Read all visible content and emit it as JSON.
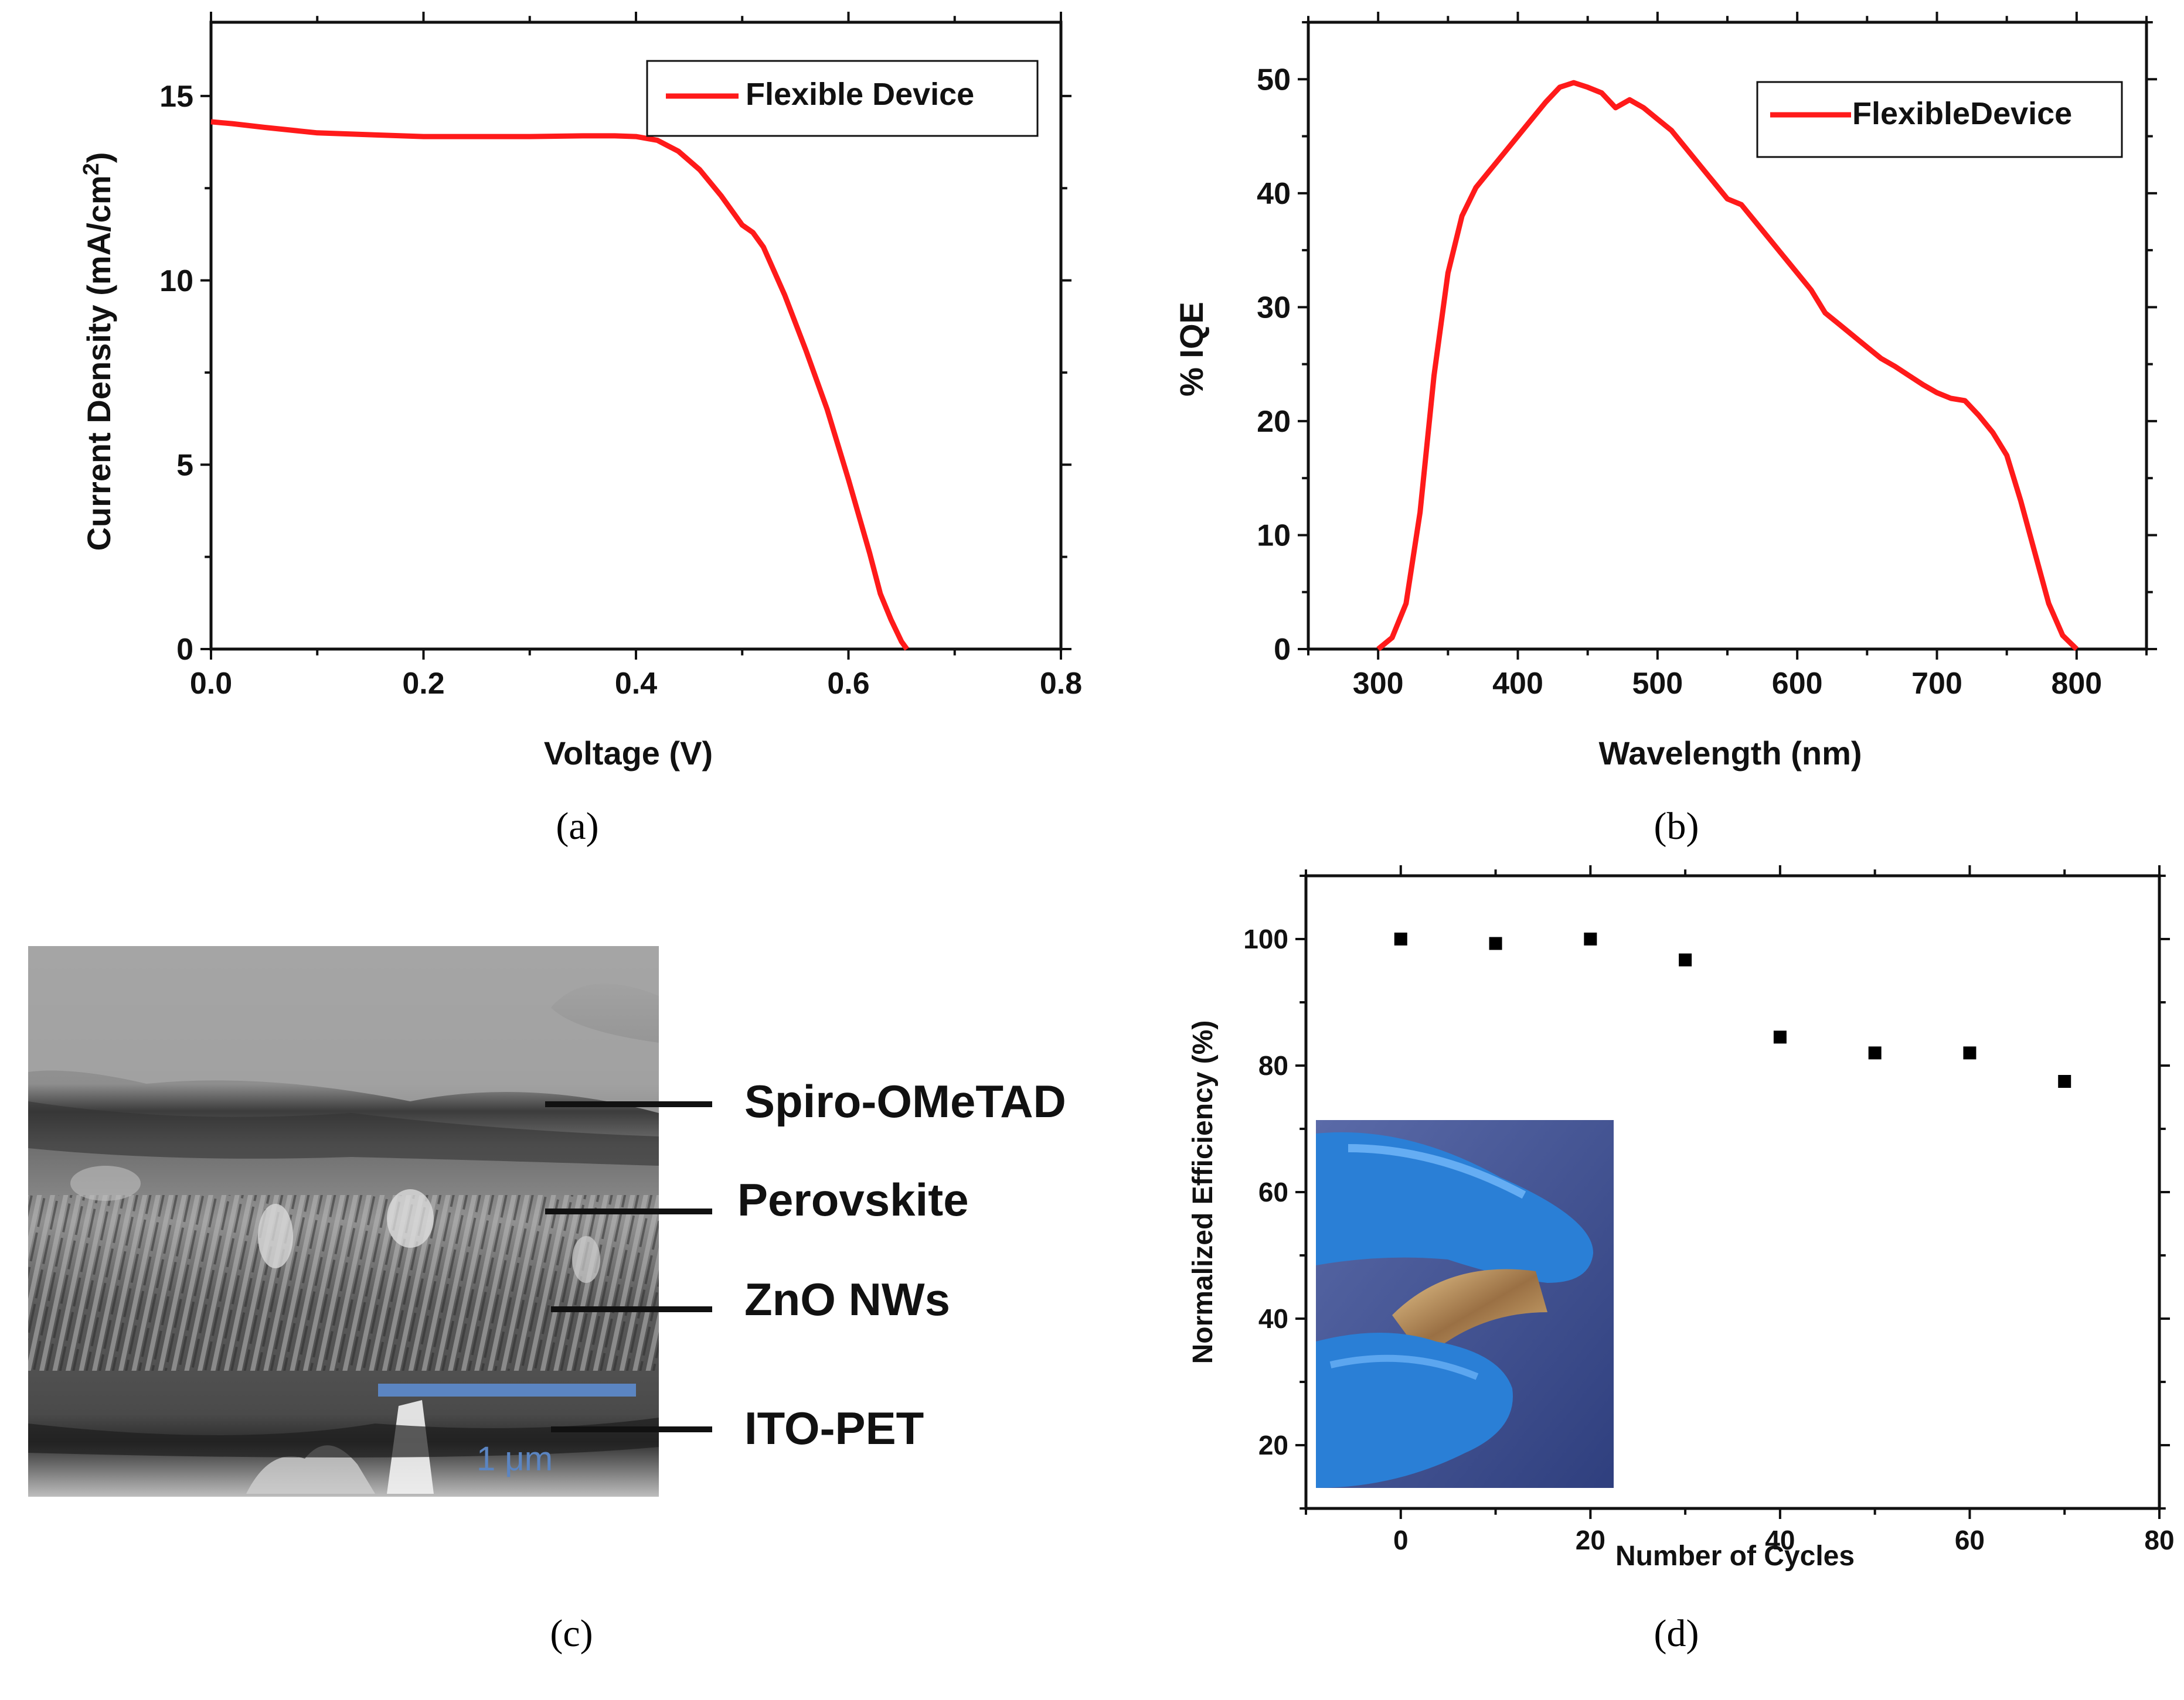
{
  "colors": {
    "curve": "#ff1a1a",
    "axis": "#111111",
    "scale_bar": "#5b85c2",
    "glove": "#2a7fd6",
    "background": "#ffffff"
  },
  "captions": {
    "a": "(a)",
    "b": "(b)",
    "c": "(c)",
    "d": "(d)"
  },
  "sem": {
    "scale_bar_label": "1 μm",
    "layers": [
      "Spiro-OMeTAD",
      "Perovskite",
      "ZnO NWs",
      "ITO-PET"
    ]
  },
  "chart_data": [
    {
      "id": "a",
      "type": "line",
      "title": "",
      "xlabel": "Voltage (V)",
      "ylabel": "Current Density (mA/cm2)",
      "ylabel_main": "Current Density (mA/cm",
      "ylabel_sup": "2",
      "ylabel_end": ")",
      "xlim": [
        0,
        0.8
      ],
      "ylim": [
        0,
        17
      ],
      "xticks": [
        0.0,
        0.2,
        0.4,
        0.6,
        0.8
      ],
      "xtick_labels": [
        "0.0",
        "0.2",
        "0.4",
        "0.6",
        "0.8"
      ],
      "yticks": [
        0,
        5,
        10,
        15
      ],
      "ytick_labels": [
        "0",
        "5",
        "10",
        "15"
      ],
      "legend": "top-right",
      "series": [
        {
          "name": "Flexible Device",
          "x": [
            0,
            0.02,
            0.05,
            0.1,
            0.15,
            0.2,
            0.25,
            0.3,
            0.35,
            0.38,
            0.4,
            0.42,
            0.44,
            0.46,
            0.48,
            0.5,
            0.51,
            0.52,
            0.54,
            0.56,
            0.58,
            0.6,
            0.62,
            0.63,
            0.64,
            0.65,
            0.655
          ],
          "y": [
            14.3,
            14.25,
            14.15,
            14.0,
            13.95,
            13.9,
            13.9,
            13.9,
            13.92,
            13.92,
            13.9,
            13.8,
            13.5,
            13.0,
            12.3,
            11.5,
            11.3,
            10.9,
            9.6,
            8.1,
            6.5,
            4.6,
            2.6,
            1.5,
            0.8,
            0.2,
            0.0
          ]
        }
      ]
    },
    {
      "id": "b",
      "type": "line",
      "title": "",
      "xlabel": "Wavelength (nm)",
      "ylabel": "% IQE",
      "xlim": [
        250,
        850
      ],
      "ylim": [
        0,
        55
      ],
      "xticks": [
        300,
        400,
        500,
        600,
        700,
        800
      ],
      "xtick_labels": [
        "300",
        "400",
        "500",
        "600",
        "700",
        "800"
      ],
      "yticks": [
        0,
        10,
        20,
        30,
        40,
        50
      ],
      "ytick_labels": [
        "0",
        "10",
        "20",
        "30",
        "40",
        "50"
      ],
      "legend": "top-right",
      "series": [
        {
          "name": "FlexibleDevice",
          "x": [
            300,
            310,
            320,
            330,
            340,
            350,
            360,
            370,
            380,
            390,
            400,
            410,
            420,
            430,
            440,
            450,
            460,
            470,
            480,
            490,
            500,
            510,
            520,
            530,
            540,
            550,
            560,
            570,
            580,
            590,
            600,
            610,
            620,
            630,
            640,
            650,
            660,
            670,
            680,
            690,
            700,
            710,
            720,
            730,
            740,
            750,
            760,
            770,
            780,
            790,
            800
          ],
          "y": [
            0,
            1,
            4,
            12,
            24,
            33,
            38,
            40.5,
            42,
            43.5,
            45,
            46.5,
            48,
            49.3,
            49.7,
            49.3,
            48.8,
            47.5,
            48.2,
            47.5,
            46.5,
            45.5,
            44,
            42.5,
            41,
            39.5,
            39,
            37.5,
            36,
            34.5,
            33,
            31.5,
            29.5,
            28.5,
            27.5,
            26.5,
            25.5,
            24.8,
            24,
            23.2,
            22.5,
            22,
            21.8,
            20.5,
            19,
            17,
            13,
            8.5,
            4,
            1.2,
            0
          ]
        }
      ]
    },
    {
      "id": "d",
      "type": "scatter",
      "title": "",
      "xlabel": "Number of Cycles",
      "ylabel": "Normalized Efficiency (%)",
      "xlim": [
        -10,
        80
      ],
      "ylim": [
        10,
        110
      ],
      "xticks": [
        0,
        20,
        40,
        60,
        80
      ],
      "xtick_labels": [
        "0",
        "20",
        "40",
        "60",
        "80"
      ],
      "yticks": [
        20,
        40,
        60,
        80,
        100
      ],
      "ytick_labels": [
        "20",
        "40",
        "60",
        "80",
        "100"
      ],
      "legend": "none",
      "series": [
        {
          "name": "Normalized Efficiency",
          "x": [
            0,
            10,
            20,
            30,
            40,
            50,
            60,
            70
          ],
          "y": [
            100,
            99.3,
            100,
            96.7,
            84.5,
            82,
            82,
            77.5
          ]
        }
      ]
    }
  ]
}
